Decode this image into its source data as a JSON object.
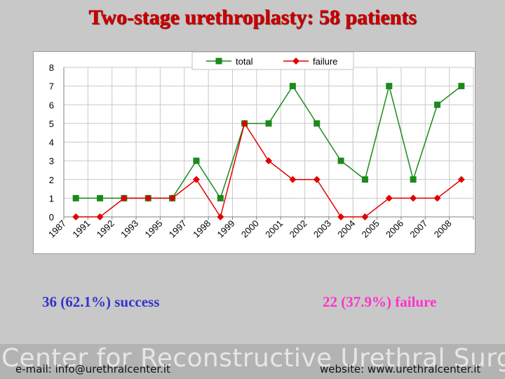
{
  "slide": {
    "title": "Two-stage urethroplasty: 58 patients",
    "success_text": "36 (62.1%) success",
    "failure_text": "22 (37.9%) failure",
    "banner_text": "Center for Reconstructive Urethral Surgery",
    "email_text": "e-mail: info@urethralcenter.it",
    "website_text": "website: www.urethralcenter.it"
  },
  "colors": {
    "title": "#cc0000",
    "success": "#3333cc",
    "failure_text": "#ff33cc",
    "total_series": "#1a8a1a",
    "failure_series": "#e00000"
  },
  "chart_data": {
    "type": "line",
    "categories": [
      "1987",
      "1991",
      "1992",
      "1993",
      "1995",
      "1997",
      "1998",
      "1999",
      "2000",
      "2001",
      "2002",
      "2003",
      "2004",
      "2005",
      "2006",
      "2007",
      "2008"
    ],
    "series": [
      {
        "name": "total",
        "marker": "square",
        "color": "#1a8a1a",
        "values": [
          1,
          1,
          1,
          1,
          1,
          3,
          1,
          5,
          5,
          7,
          5,
          3,
          2,
          7,
          2,
          6,
          7
        ]
      },
      {
        "name": "failure",
        "marker": "diamond",
        "color": "#e00000",
        "values": [
          0,
          0,
          1,
          1,
          1,
          2,
          0,
          5,
          3,
          2,
          2,
          0,
          0,
          1,
          1,
          1,
          2
        ]
      }
    ],
    "yticks": [
      0,
      1,
      2,
      3,
      4,
      5,
      6,
      7,
      8
    ],
    "ylim": [
      0,
      8
    ],
    "grid": "horizontal and vertical",
    "legend": "top-center"
  }
}
